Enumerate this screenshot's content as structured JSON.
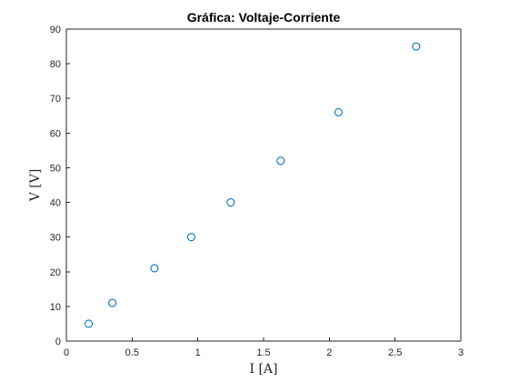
{
  "chart_data": {
    "type": "scatter",
    "title": "Gráfica: Voltaje-Corriente",
    "xlabel": "I [A]",
    "ylabel": "V [V]",
    "xlim": [
      0,
      3
    ],
    "ylim": [
      0,
      90
    ],
    "xticks": [
      0,
      0.5,
      1,
      1.5,
      2,
      2.5,
      3
    ],
    "xtick_labels": [
      "0",
      "0.5",
      "1",
      "1.5",
      "2",
      "2.5",
      "3"
    ],
    "yticks": [
      0,
      10,
      20,
      30,
      40,
      50,
      60,
      70,
      80,
      90
    ],
    "ytick_labels": [
      "0",
      "10",
      "20",
      "30",
      "40",
      "50",
      "60",
      "70",
      "80",
      "90"
    ],
    "grid": false,
    "marker": "open-circle",
    "colors": {
      "marker_edge": "#0072BD",
      "axis": "#262626"
    },
    "series": [
      {
        "x": [
          0.17,
          0.35,
          0.67,
          0.95,
          1.25,
          1.63,
          2.07,
          2.66
        ],
        "y": [
          5,
          11,
          21,
          30,
          40,
          52,
          66,
          85
        ]
      }
    ]
  }
}
